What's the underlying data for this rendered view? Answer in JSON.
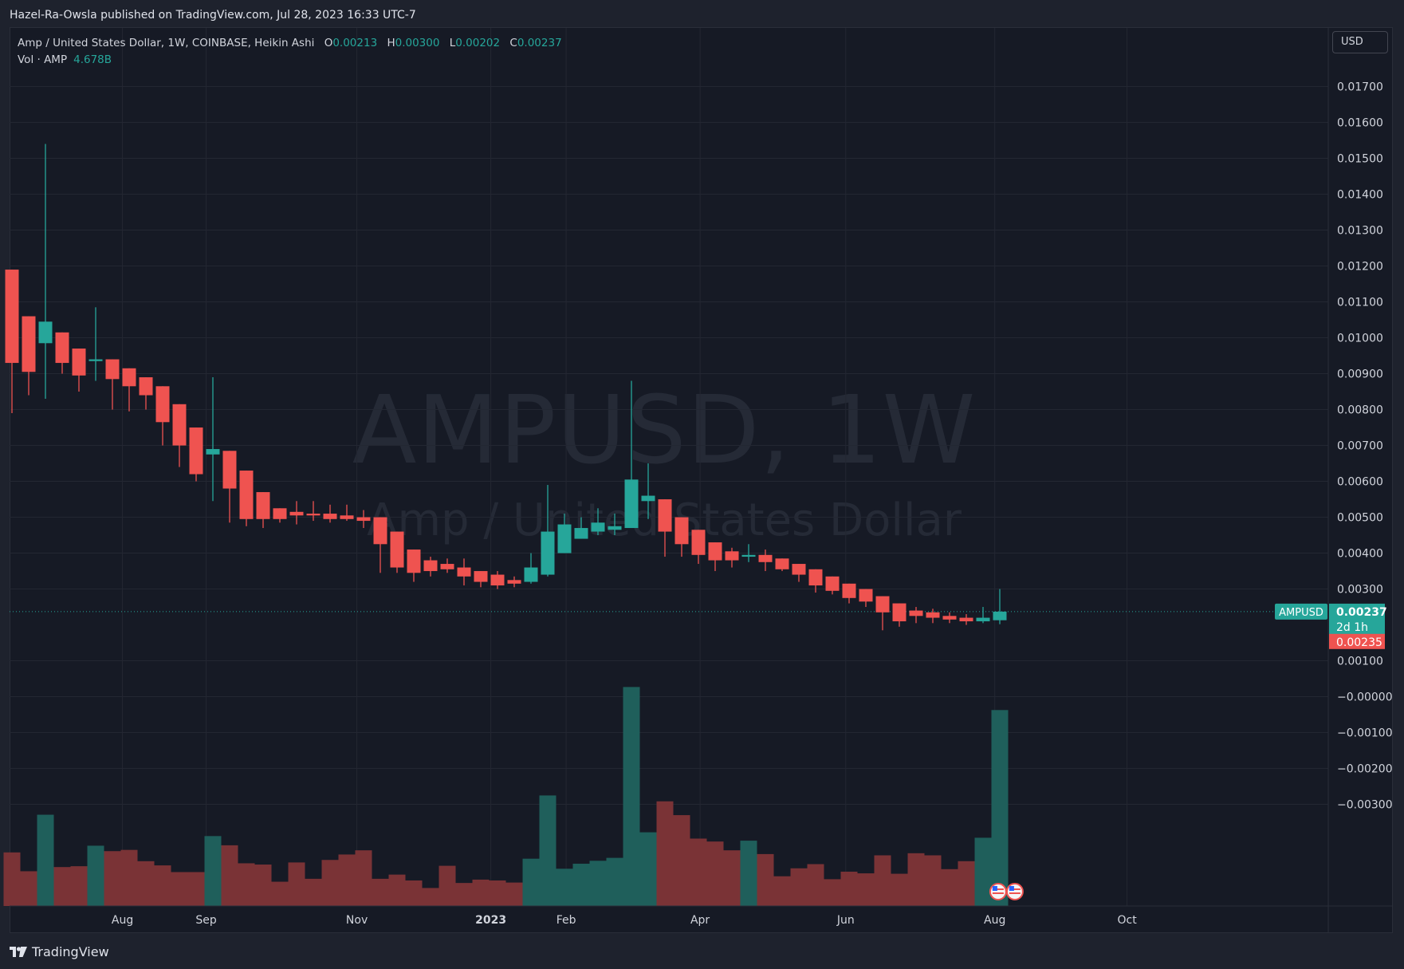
{
  "header": {
    "publisher_text": "Hazel-Ra-Owsla published on TradingView.com, Jul 28, 2023 16:33 UTC-7"
  },
  "legend": {
    "symbol_line": "Amp / United States Dollar, 1W, COINBASE, Heikin Ashi",
    "open_label": "O",
    "open_value": "0.00213",
    "high_label": "H",
    "high_value": "0.00300",
    "low_label": "L",
    "low_value": "0.00202",
    "close_label": "C",
    "close_value": "0.00237",
    "volume_label": "Vol · AMP",
    "volume_value": "4.678B"
  },
  "currency_button": "USD",
  "watermark": {
    "line1": "AMPUSD, 1W",
    "line2": "Amp / United States Dollar"
  },
  "price_tags": {
    "symbol": "AMPUSD",
    "last_price": "0.00237",
    "countdown": "2d 1h",
    "previous_close": "0.00235"
  },
  "footer": {
    "brand": "TradingView"
  },
  "colors": {
    "up": "#26a69a",
    "down": "#ef5350",
    "up_volume": "#1f5f5b",
    "down_volume": "#7a3336",
    "background": "#161a25",
    "grid": "#232732"
  },
  "chart_data": {
    "type": "candlestick",
    "price_scale_ticks": [
      "0.01700",
      "0.01600",
      "0.01500",
      "0.01400",
      "0.01300",
      "0.01200",
      "0.01100",
      "0.01000",
      "0.00900",
      "0.00800",
      "0.00700",
      "0.00600",
      "0.00500",
      "0.00400",
      "0.00300",
      "0.00100",
      "−0.00000",
      "−0.00100",
      "−0.00200",
      "−0.00300"
    ],
    "time_axis_ticks": [
      {
        "label": "Aug",
        "bold": false,
        "week": 6.6
      },
      {
        "label": "Sep",
        "bold": false,
        "week": 11.6
      },
      {
        "label": "Nov",
        "bold": false,
        "week": 20.6
      },
      {
        "label": "2023",
        "bold": true,
        "week": 28.6
      },
      {
        "label": "Feb",
        "bold": false,
        "week": 33.1
      },
      {
        "label": "Apr",
        "bold": false,
        "week": 41.1
      },
      {
        "label": "Jun",
        "bold": false,
        "week": 49.8
      },
      {
        "label": "Aug",
        "bold": false,
        "week": 58.7
      },
      {
        "label": "Oct",
        "bold": false,
        "week": 66.6
      }
    ],
    "volume_axis_max": 120,
    "candles": [
      {
        "o": 0.0119,
        "h": 0.0119,
        "l": 0.0079,
        "c": 0.0093,
        "v": 12.8
      },
      {
        "o": 0.0106,
        "h": 0.0106,
        "l": 0.0084,
        "c": 0.00905,
        "v": 8.3
      },
      {
        "o": 0.00985,
        "h": 0.0154,
        "l": 0.0083,
        "c": 0.01045,
        "v": 21.8
      },
      {
        "o": 0.01015,
        "h": 0.01015,
        "l": 0.009,
        "c": 0.0093,
        "v": 9.3
      },
      {
        "o": 0.0097,
        "h": 0.0097,
        "l": 0.0085,
        "c": 0.00895,
        "v": 9.5
      },
      {
        "o": 0.00935,
        "h": 0.01085,
        "l": 0.0088,
        "c": 0.0094,
        "v": 14.4
      },
      {
        "o": 0.0094,
        "h": 0.0094,
        "l": 0.008,
        "c": 0.00885,
        "v": 13.1
      },
      {
        "o": 0.00915,
        "h": 0.00915,
        "l": 0.00795,
        "c": 0.00865,
        "v": 13.4
      },
      {
        "o": 0.0089,
        "h": 0.0089,
        "l": 0.008,
        "c": 0.0084,
        "v": 10.7
      },
      {
        "o": 0.00865,
        "h": 0.00865,
        "l": 0.007,
        "c": 0.00765,
        "v": 9.7
      },
      {
        "o": 0.00815,
        "h": 0.00815,
        "l": 0.0064,
        "c": 0.007,
        "v": 8.1
      },
      {
        "o": 0.0075,
        "h": 0.0075,
        "l": 0.006,
        "c": 0.0062,
        "v": 8.1
      },
      {
        "o": 0.00675,
        "h": 0.0089,
        "l": 0.00545,
        "c": 0.0069,
        "v": 16.7
      },
      {
        "o": 0.00685,
        "h": 0.00685,
        "l": 0.00485,
        "c": 0.0058,
        "v": 14.5
      },
      {
        "o": 0.0063,
        "h": 0.0063,
        "l": 0.00475,
        "c": 0.00495,
        "v": 10.2
      },
      {
        "o": 0.0057,
        "h": 0.0057,
        "l": 0.0047,
        "c": 0.00495,
        "v": 9.9
      },
      {
        "o": 0.00525,
        "h": 0.00525,
        "l": 0.00485,
        "c": 0.00495,
        "v": 5.8
      },
      {
        "o": 0.00515,
        "h": 0.00545,
        "l": 0.0048,
        "c": 0.00505,
        "v": 10.4
      },
      {
        "o": 0.0051,
        "h": 0.00545,
        "l": 0.0049,
        "c": 0.00505,
        "v": 6.5
      },
      {
        "o": 0.0051,
        "h": 0.00535,
        "l": 0.00485,
        "c": 0.00495,
        "v": 11.0
      },
      {
        "o": 0.00505,
        "h": 0.00535,
        "l": 0.0049,
        "c": 0.00495,
        "v": 12.3
      },
      {
        "o": 0.005,
        "h": 0.0052,
        "l": 0.0047,
        "c": 0.0049,
        "v": 13.3
      },
      {
        "o": 0.005,
        "h": 0.005,
        "l": 0.00345,
        "c": 0.00425,
        "v": 6.5
      },
      {
        "o": 0.0046,
        "h": 0.0046,
        "l": 0.00345,
        "c": 0.0036,
        "v": 7.5
      },
      {
        "o": 0.0041,
        "h": 0.0041,
        "l": 0.0032,
        "c": 0.00345,
        "v": 6.1
      },
      {
        "o": 0.0038,
        "h": 0.0039,
        "l": 0.00335,
        "c": 0.0035,
        "v": 4.3
      },
      {
        "o": 0.0037,
        "h": 0.00385,
        "l": 0.00345,
        "c": 0.00355,
        "v": 9.6
      },
      {
        "o": 0.0036,
        "h": 0.00385,
        "l": 0.0031,
        "c": 0.00335,
        "v": 5.5
      },
      {
        "o": 0.0035,
        "h": 0.0035,
        "l": 0.00305,
        "c": 0.0032,
        "v": 6.3
      },
      {
        "o": 0.0034,
        "h": 0.0035,
        "l": 0.003,
        "c": 0.0031,
        "v": 6.1
      },
      {
        "o": 0.00325,
        "h": 0.00335,
        "l": 0.00305,
        "c": 0.00315,
        "v": 5.6
      },
      {
        "o": 0.0032,
        "h": 0.004,
        "l": 0.00315,
        "c": 0.0036,
        "v": 11.3
      },
      {
        "o": 0.0034,
        "h": 0.0059,
        "l": 0.00335,
        "c": 0.0046,
        "v": 26.4
      },
      {
        "o": 0.004,
        "h": 0.0051,
        "l": 0.004,
        "c": 0.0048,
        "v": 8.9
      },
      {
        "o": 0.0044,
        "h": 0.005,
        "l": 0.0044,
        "c": 0.0047,
        "v": 10.1
      },
      {
        "o": 0.0046,
        "h": 0.00525,
        "l": 0.0045,
        "c": 0.00485,
        "v": 10.8
      },
      {
        "o": 0.00465,
        "h": 0.0051,
        "l": 0.0045,
        "c": 0.00475,
        "v": 11.5
      },
      {
        "o": 0.0047,
        "h": 0.0088,
        "l": 0.0047,
        "c": 0.00605,
        "v": 52.3
      },
      {
        "o": 0.00545,
        "h": 0.0065,
        "l": 0.00495,
        "c": 0.0056,
        "v": 17.6
      },
      {
        "o": 0.0055,
        "h": 0.0055,
        "l": 0.0039,
        "c": 0.0046,
        "v": 25.0
      },
      {
        "o": 0.005,
        "h": 0.005,
        "l": 0.0039,
        "c": 0.00425,
        "v": 21.7
      },
      {
        "o": 0.00465,
        "h": 0.00465,
        "l": 0.0037,
        "c": 0.00395,
        "v": 16.1
      },
      {
        "o": 0.0043,
        "h": 0.0043,
        "l": 0.0035,
        "c": 0.0038,
        "v": 15.4
      },
      {
        "o": 0.00405,
        "h": 0.00415,
        "l": 0.0036,
        "c": 0.0038,
        "v": 13.3
      },
      {
        "o": 0.0039,
        "h": 0.00425,
        "l": 0.00375,
        "c": 0.00395,
        "v": 15.6
      },
      {
        "o": 0.00395,
        "h": 0.0041,
        "l": 0.0035,
        "c": 0.00375,
        "v": 12.4
      },
      {
        "o": 0.00385,
        "h": 0.00385,
        "l": 0.0035,
        "c": 0.00355,
        "v": 7.1
      },
      {
        "o": 0.0037,
        "h": 0.0037,
        "l": 0.0032,
        "c": 0.0034,
        "v": 9.0
      },
      {
        "o": 0.00355,
        "h": 0.00355,
        "l": 0.0029,
        "c": 0.0031,
        "v": 10.0
      },
      {
        "o": 0.00335,
        "h": 0.00335,
        "l": 0.00285,
        "c": 0.00295,
        "v": 6.4
      },
      {
        "o": 0.00315,
        "h": 0.00315,
        "l": 0.0026,
        "c": 0.00275,
        "v": 8.2
      },
      {
        "o": 0.003,
        "h": 0.003,
        "l": 0.0025,
        "c": 0.00265,
        "v": 7.8
      },
      {
        "o": 0.0028,
        "h": 0.0028,
        "l": 0.00185,
        "c": 0.00235,
        "v": 12.1
      },
      {
        "o": 0.0026,
        "h": 0.0026,
        "l": 0.00195,
        "c": 0.0021,
        "v": 7.7
      },
      {
        "o": 0.0024,
        "h": 0.0025,
        "l": 0.00205,
        "c": 0.00225,
        "v": 12.6
      },
      {
        "o": 0.00235,
        "h": 0.00245,
        "l": 0.00205,
        "c": 0.0022,
        "v": 12.1
      },
      {
        "o": 0.00225,
        "h": 0.00235,
        "l": 0.00205,
        "c": 0.00215,
        "v": 8.8
      },
      {
        "o": 0.0022,
        "h": 0.0023,
        "l": 0.002,
        "c": 0.0021,
        "v": 10.7
      },
      {
        "o": 0.0021,
        "h": 0.0025,
        "l": 0.00205,
        "c": 0.0022,
        "v": 16.3
      },
      {
        "o": 0.00213,
        "h": 0.003,
        "l": 0.00202,
        "c": 0.00237,
        "v": 46.8
      }
    ]
  }
}
